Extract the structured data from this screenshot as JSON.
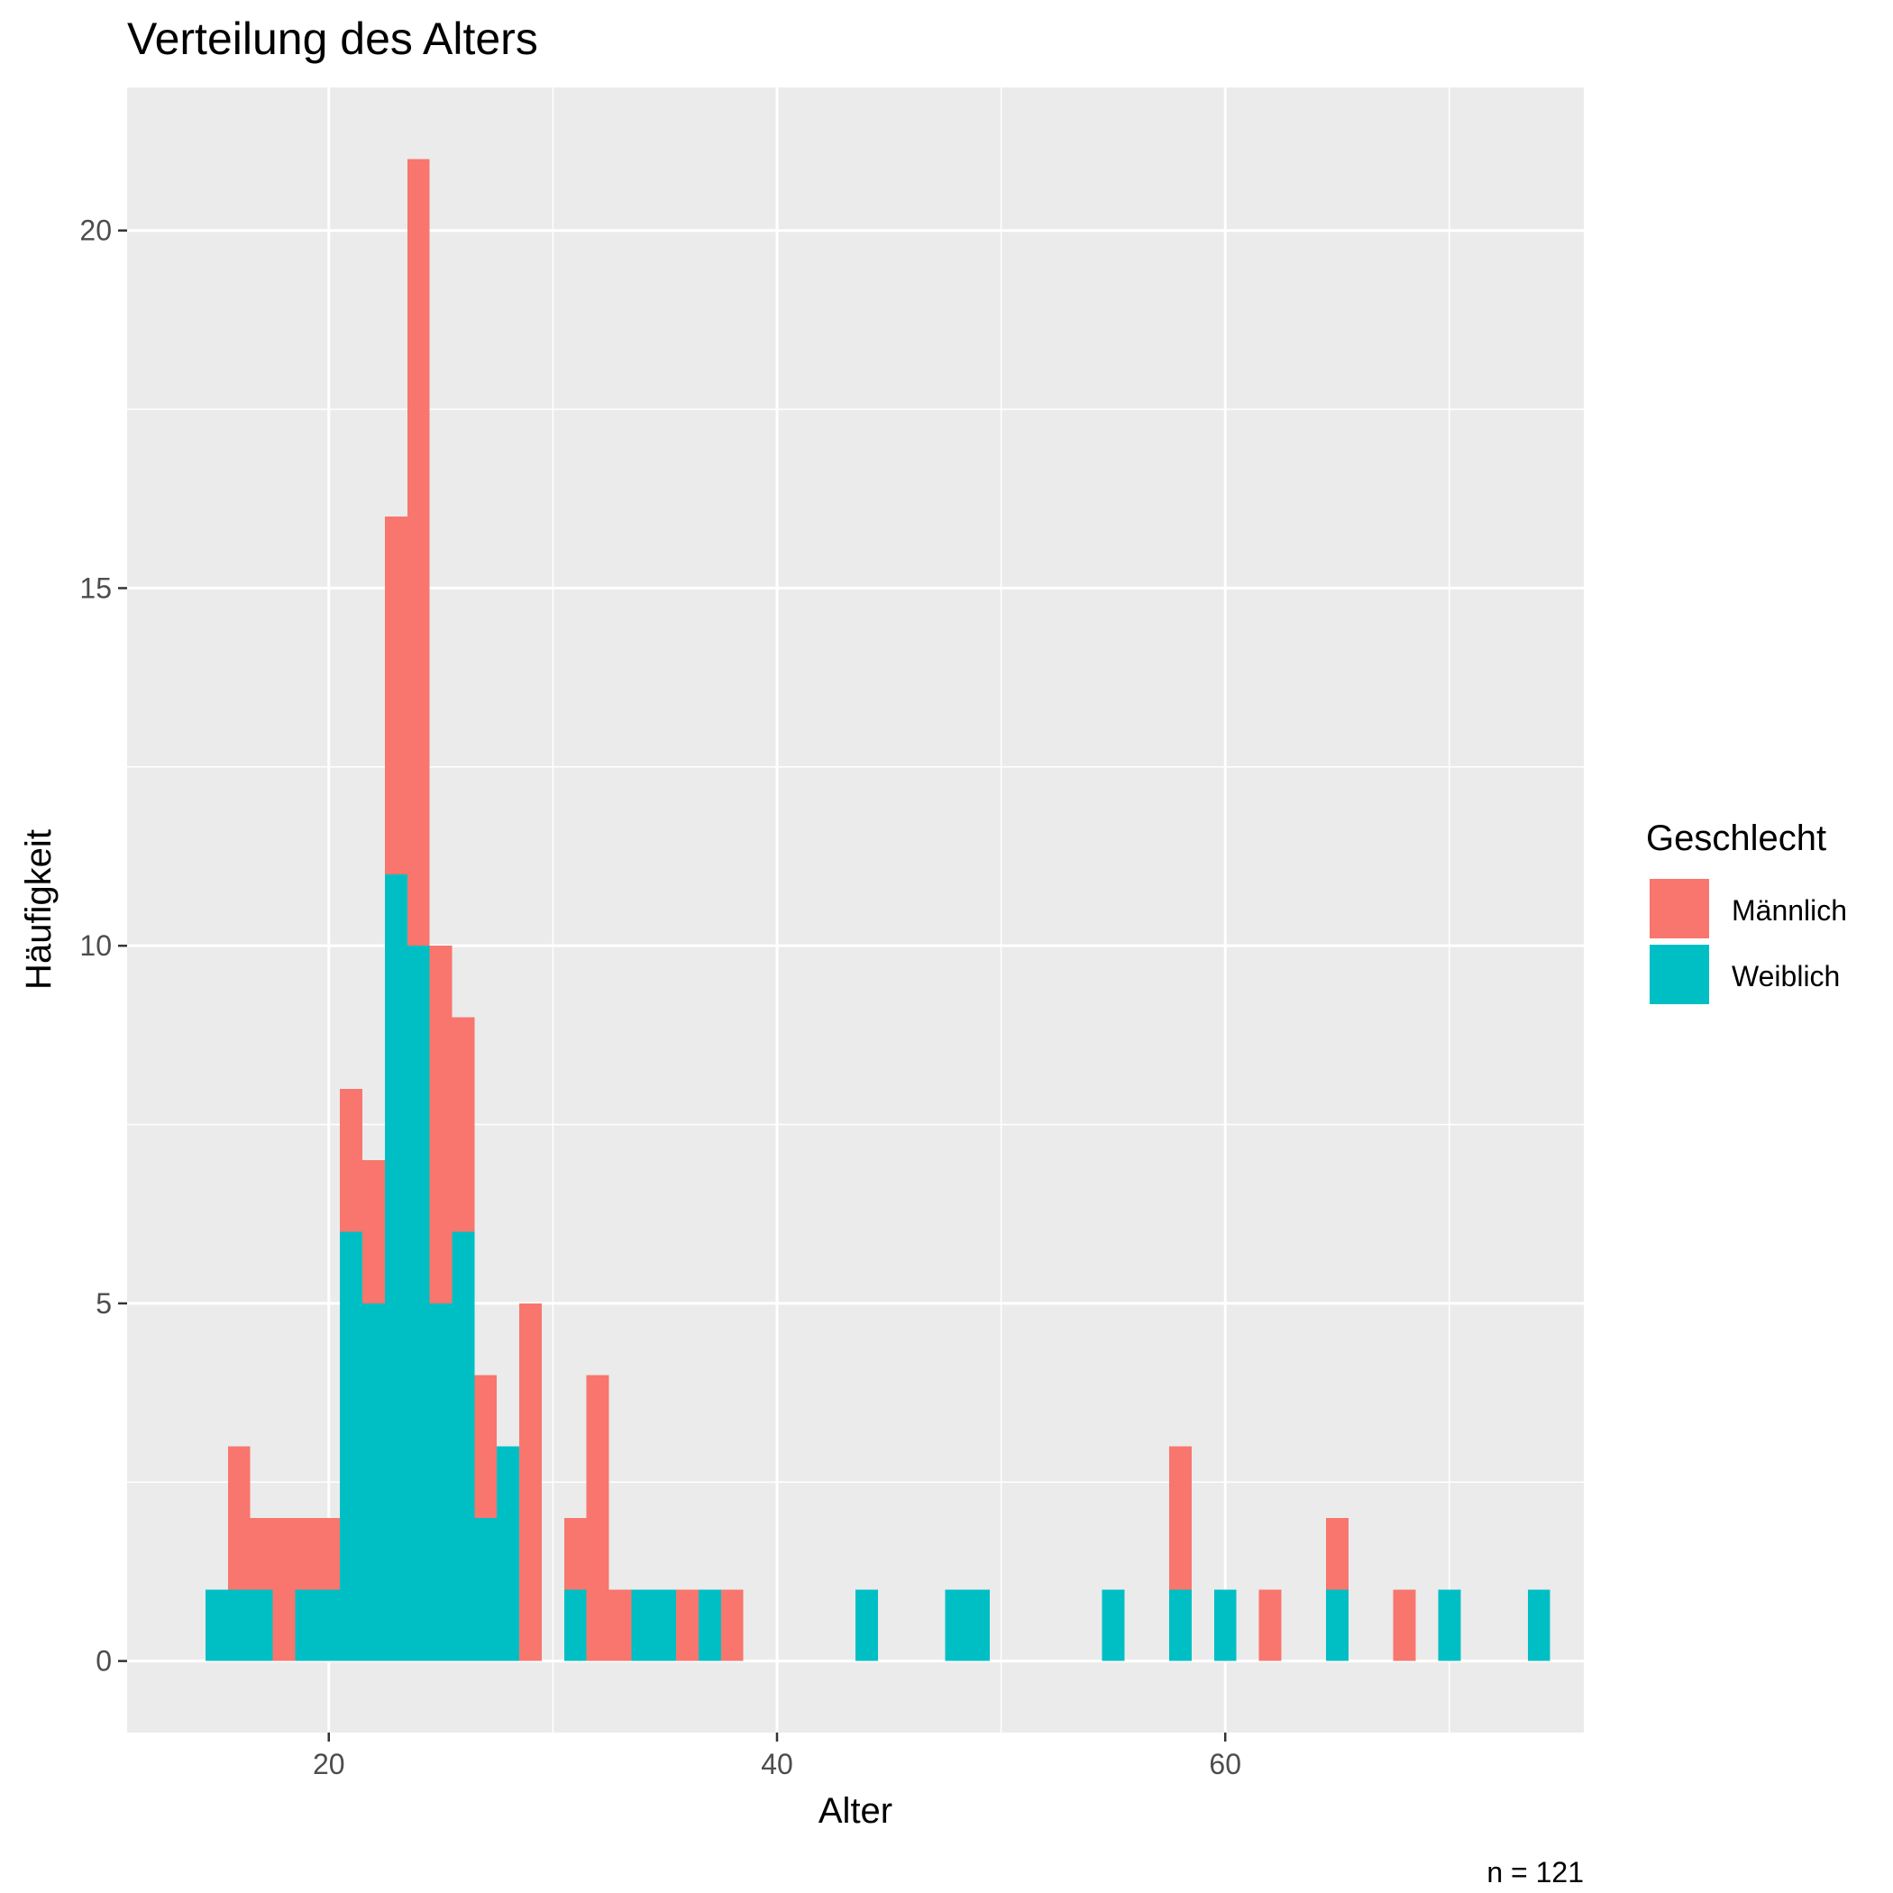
{
  "chart_data": {
    "type": "bar",
    "title": "Verteilung des Alters",
    "xlabel": "Alter",
    "ylabel": "Häufigkeit",
    "caption": "n = 121",
    "xlim": [
      11,
      76
    ],
    "ylim": [
      -1,
      22
    ],
    "x_ticks": [
      20,
      40,
      60
    ],
    "y_ticks": [
      0,
      5,
      10,
      15,
      20
    ],
    "grid": true,
    "legend": {
      "title": "Geschlecht",
      "position": "right",
      "entries": [
        {
          "label": "Männlich",
          "color": "#F8766D"
        },
        {
          "label": "Weiblich",
          "color": "#00BFC4"
        }
      ]
    },
    "stacked": true,
    "bin_width": 1,
    "x": [
      15,
      16,
      17,
      18,
      19,
      20,
      21,
      22,
      23,
      24,
      25,
      26,
      27,
      28,
      29,
      31,
      32,
      33,
      34,
      35,
      36,
      37,
      38,
      44,
      48,
      49,
      55,
      58,
      60,
      62,
      65,
      68,
      70,
      74
    ],
    "series": [
      {
        "name": "Weiblich",
        "color": "#00BFC4",
        "values": [
          1,
          1,
          1,
          0,
          1,
          1,
          6,
          5,
          11,
          10,
          5,
          6,
          2,
          3,
          0,
          1,
          0,
          0,
          1,
          1,
          0,
          1,
          0,
          1,
          1,
          1,
          1,
          1,
          1,
          0,
          1,
          0,
          1,
          1
        ]
      },
      {
        "name": "Männlich",
        "color": "#F8766D",
        "values": [
          0,
          2,
          1,
          2,
          1,
          1,
          2,
          2,
          5,
          11,
          5,
          3,
          2,
          0,
          5,
          1,
          4,
          1,
          0,
          0,
          1,
          0,
          1,
          0,
          0,
          0,
          0,
          2,
          0,
          1,
          1,
          1,
          0,
          0
        ]
      }
    ]
  }
}
